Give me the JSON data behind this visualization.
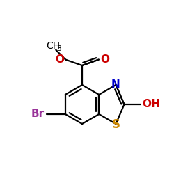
{
  "bg_color": "#ffffff",
  "bond_color": "#000000",
  "bond_lw": 1.6,
  "figsize": [
    2.5,
    2.5
  ],
  "dpi": 100,
  "colors": {
    "N": "#0000cc",
    "S": "#ccaa00",
    "O": "#cc0000",
    "Br": "#993399",
    "C": "#000000"
  }
}
